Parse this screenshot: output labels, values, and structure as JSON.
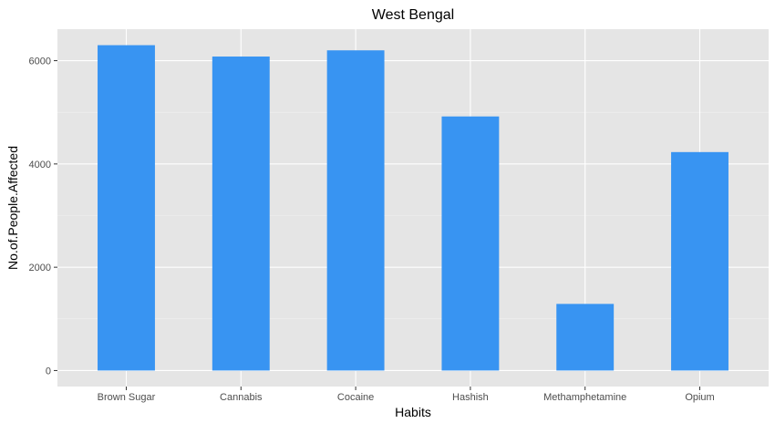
{
  "chart_data": {
    "type": "bar",
    "title": "West Bengal",
    "xlabel": "Habits",
    "ylabel": "No.of.People.Affected",
    "categories": [
      "Brown Sugar",
      "Cannabis",
      "Cocaine",
      "Hashish",
      "Methamphetamine",
      "Opium"
    ],
    "values": [
      6300,
      6080,
      6200,
      4920,
      1290,
      4230
    ],
    "ylim": [
      -310,
      6610
    ],
    "yticks": [
      0,
      2000,
      4000,
      6000
    ],
    "grid": true,
    "legend": "none"
  },
  "colors": {
    "bar": "#3894f2",
    "panel_background": "#e5e5e5",
    "grid_major": "#ffffff",
    "grid_minor": "#f2f2f2",
    "tick_label": "#4d4d4d",
    "tick_mark": "#333333"
  }
}
